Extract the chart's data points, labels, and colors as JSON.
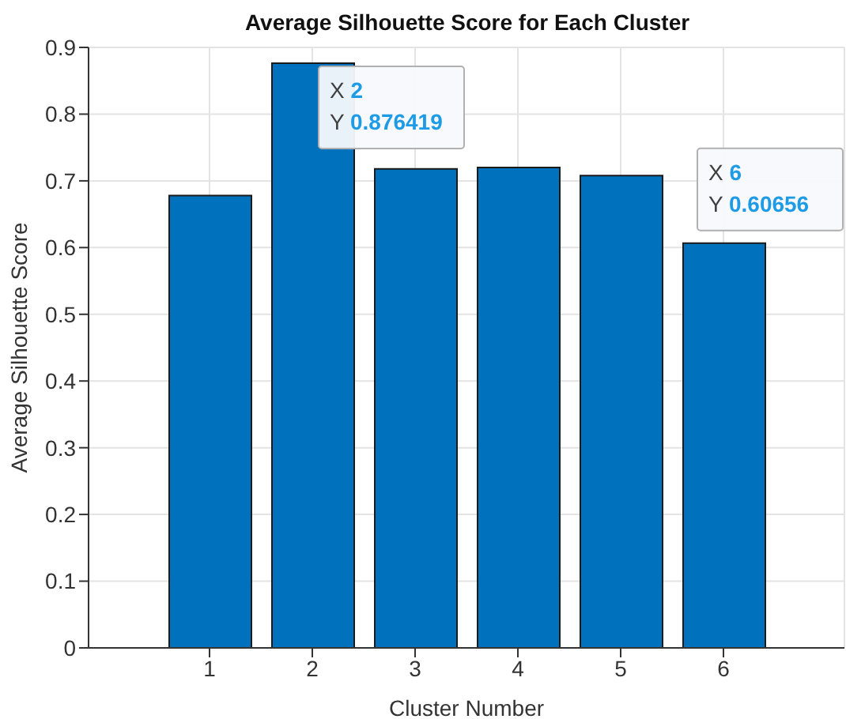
{
  "chart_data": {
    "type": "bar",
    "title": "Average Silhouette Score for Each Cluster",
    "xlabel": "Cluster Number",
    "ylabel": "Average Silhouette Score",
    "categories": [
      "1",
      "2",
      "3",
      "4",
      "5",
      "6"
    ],
    "values": [
      0.678,
      0.876419,
      0.718,
      0.72,
      0.708,
      0.60656
    ],
    "color": "#0072bd",
    "ylim": [
      0,
      0.9
    ],
    "yticks": [
      0,
      0.1,
      0.2,
      0.3,
      0.4,
      0.5,
      0.6,
      0.7,
      0.8,
      0.9
    ],
    "grid": true,
    "annotations": [
      {
        "text": "X 2\nY 0.876419",
        "x": "2",
        "y": 0.876419
      },
      {
        "text": "X 6\nY 0.60656",
        "x": "6",
        "y": 0.60656
      }
    ]
  }
}
